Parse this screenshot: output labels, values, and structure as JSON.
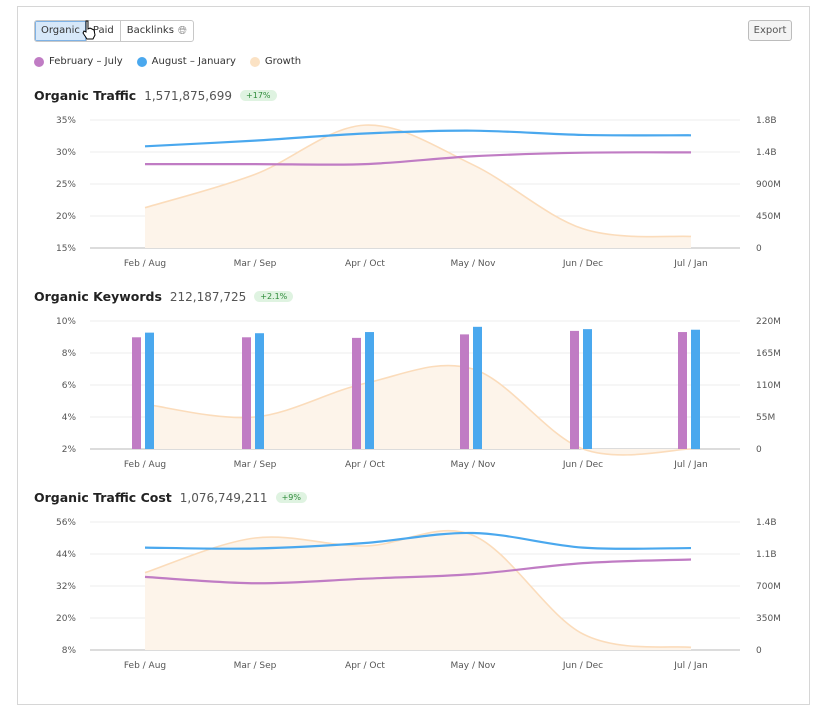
{
  "toolbar": {
    "tabs": [
      {
        "label": "Organic",
        "active": true
      },
      {
        "label": "Paid",
        "active": false
      },
      {
        "label": "Backlinks",
        "active": false
      }
    ],
    "backlinks_icon": "globe-icon",
    "export_label": "Export"
  },
  "legend": [
    {
      "label": "February – July",
      "color": "#c07cc4"
    },
    {
      "label": "August – January",
      "color": "#4aa8ee"
    },
    {
      "label": "Growth",
      "color": "#fbe2c4"
    }
  ],
  "chart_data": [
    {
      "type": "line",
      "title": "Organic Traffic",
      "total": "1,571,875,699",
      "badge": "+17%",
      "categories": [
        "Feb / Aug",
        "Mar / Sep",
        "Apr / Oct",
        "May / Nov",
        "Jun / Dec",
        "Jul / Jan"
      ],
      "left_ticks": [
        "35%",
        "30%",
        "25%",
        "20%",
        "15%"
      ],
      "right_ticks": [
        "1.8B",
        "1.4B",
        "900M",
        "450M",
        "0"
      ],
      "ylim_left": [
        15,
        35
      ],
      "ylim_right": [
        0,
        1800
      ],
      "series": [
        {
          "name": "February – July",
          "axis": "right",
          "values": [
            1180,
            1180,
            1180,
            1290,
            1340,
            1345
          ]
        },
        {
          "name": "August – January",
          "axis": "right",
          "values": [
            1430,
            1510,
            1610,
            1650,
            1590,
            1585
          ]
        },
        {
          "name": "Growth",
          "axis": "left",
          "area": true,
          "values": [
            21.3,
            26.5,
            34.2,
            28.0,
            18.0,
            16.8
          ]
        }
      ]
    },
    {
      "type": "bar",
      "title": "Organic Keywords",
      "total": "212,187,725",
      "badge": "+2.1%",
      "categories": [
        "Feb / Aug",
        "Mar / Sep",
        "Apr / Oct",
        "May / Nov",
        "Jun / Dec",
        "Jul / Jan"
      ],
      "left_ticks": [
        "10%",
        "8%",
        "6%",
        "4%",
        "2%"
      ],
      "right_ticks": [
        "220M",
        "165M",
        "110M",
        "55M",
        "0"
      ],
      "ylim_left": [
        2,
        10
      ],
      "ylim_right": [
        0,
        220
      ],
      "series": [
        {
          "name": "February – July",
          "axis": "right",
          "values": [
            192,
            192,
            191,
            197,
            203,
            201
          ]
        },
        {
          "name": "August – January",
          "axis": "right",
          "values": [
            200,
            199,
            201,
            210,
            206,
            205
          ]
        },
        {
          "name": "Growth",
          "axis": "left",
          "area": true,
          "values": [
            4.8,
            4.0,
            6.1,
            7.0,
            2.0,
            2.0
          ]
        }
      ]
    },
    {
      "type": "line",
      "title": "Organic Traffic Cost",
      "total": "1,076,749,211",
      "badge": "+9%",
      "categories": [
        "Feb / Aug",
        "Mar / Sep",
        "Apr / Oct",
        "May / Nov",
        "Jun / Dec",
        "Jul / Jan"
      ],
      "left_ticks": [
        "56%",
        "44%",
        "32%",
        "20%",
        "8%"
      ],
      "right_ticks": [
        "1.4B",
        "1.1B",
        "700M",
        "350M",
        "0"
      ],
      "ylim_left": [
        8,
        56
      ],
      "ylim_right": [
        0,
        1400
      ],
      "series": [
        {
          "name": "February – July",
          "axis": "right",
          "values": [
            800,
            730,
            780,
            830,
            950,
            990
          ]
        },
        {
          "name": "August – January",
          "axis": "right",
          "values": [
            1120,
            1110,
            1170,
            1280,
            1120,
            1115
          ]
        },
        {
          "name": "Growth",
          "axis": "left",
          "area": true,
          "values": [
            37,
            50,
            47,
            51,
            14,
            9
          ]
        }
      ]
    }
  ]
}
